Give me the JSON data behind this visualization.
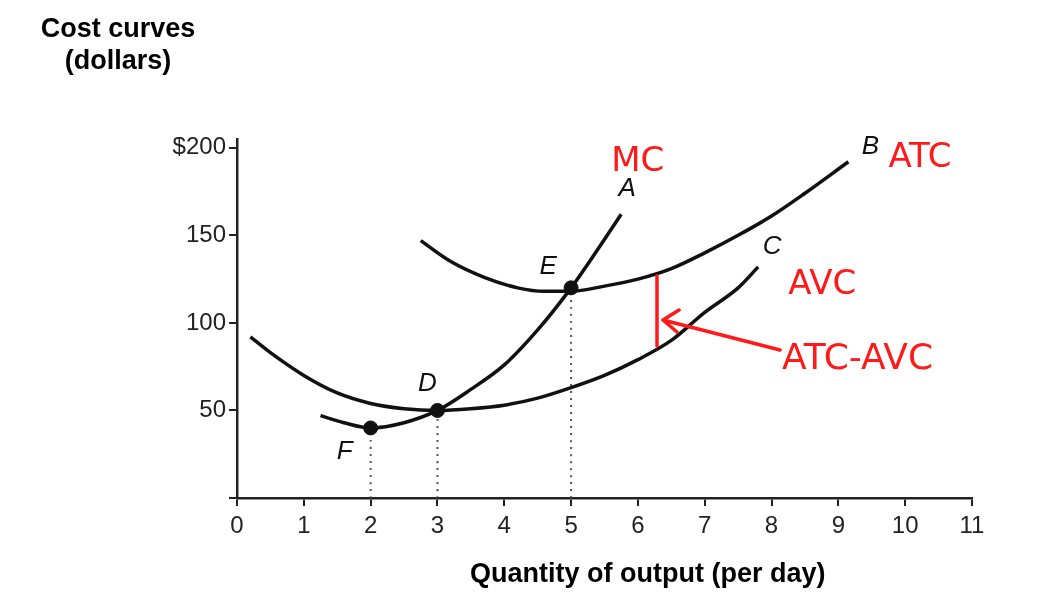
{
  "chart_data": {
    "type": "line",
    "ylabel": "Cost curves (dollars)",
    "xlabel": "Quantity of output (per day)",
    "xlim": [
      0,
      11
    ],
    "xticks": [
      0,
      1,
      2,
      3,
      4,
      5,
      6,
      7,
      8,
      9,
      10,
      11
    ],
    "ylim": [
      0,
      205
    ],
    "yticks": [
      {
        "value": 0,
        "label": null
      },
      50,
      100,
      150,
      {
        "value": 200,
        "label": "$200"
      }
    ],
    "marker": "none",
    "line_style": "solid",
    "series": [
      {
        "name": "MC",
        "color": "#111111",
        "x": [
          1.25,
          1.6,
          2,
          2.5,
          3,
          3.5,
          4,
          4.5,
          5,
          5.4,
          5.75
        ],
        "values": [
          47,
          43,
          40,
          43,
          50,
          62,
          76,
          96,
          120,
          142,
          162
        ]
      },
      {
        "name": "ATC",
        "color": "#111111",
        "x": [
          2.75,
          3.2,
          3.7,
          4.2,
          4.6,
          5,
          5.5,
          6,
          6.5,
          7,
          7.5,
          8,
          8.5,
          9.15
        ],
        "values": [
          147,
          135,
          126,
          120,
          118,
          118,
          121,
          125,
          131,
          140,
          150,
          161,
          174,
          192
        ]
      },
      {
        "name": "AVC",
        "color": "#111111",
        "x": [
          0.2,
          0.5,
          1,
          1.5,
          2,
          2.5,
          3,
          3.5,
          4,
          4.5,
          5,
          5.5,
          6,
          6.5,
          7,
          7.5,
          7.8
        ],
        "values": [
          92,
          83,
          70,
          60,
          54,
          51,
          50,
          51,
          53,
          57,
          63,
          70,
          79,
          90,
          106,
          120,
          132
        ]
      },
      {
        "color": "#555555",
        "line_style": "dotted",
        "x": [
          2,
          2
        ],
        "values": [
          0,
          40
        ]
      },
      {
        "color": "#555555",
        "line_style": "dotted",
        "x": [
          3,
          3
        ],
        "values": [
          0,
          50
        ]
      },
      {
        "color": "#555555",
        "line_style": "dotted",
        "x": [
          5,
          5
        ],
        "values": [
          0,
          120
        ]
      },
      {
        "type": "scatter",
        "marker": "circle",
        "color": "#111111",
        "x": [
          2,
          3,
          5
        ],
        "values": [
          40,
          50,
          120
        ]
      }
    ],
    "annotations": [
      {
        "text": "A",
        "x": 5.75,
        "y": 162
      },
      {
        "text": "B",
        "x": 9.15,
        "y": 192
      },
      {
        "text": "C",
        "x": 7.8,
        "y": 132
      },
      {
        "text": "D",
        "x": 3,
        "y": 50
      },
      {
        "text": "E",
        "x": 5,
        "y": 120
      },
      {
        "text": "F",
        "x": 2,
        "y": 40
      },
      "ATC-AVC"
    ]
  }
}
